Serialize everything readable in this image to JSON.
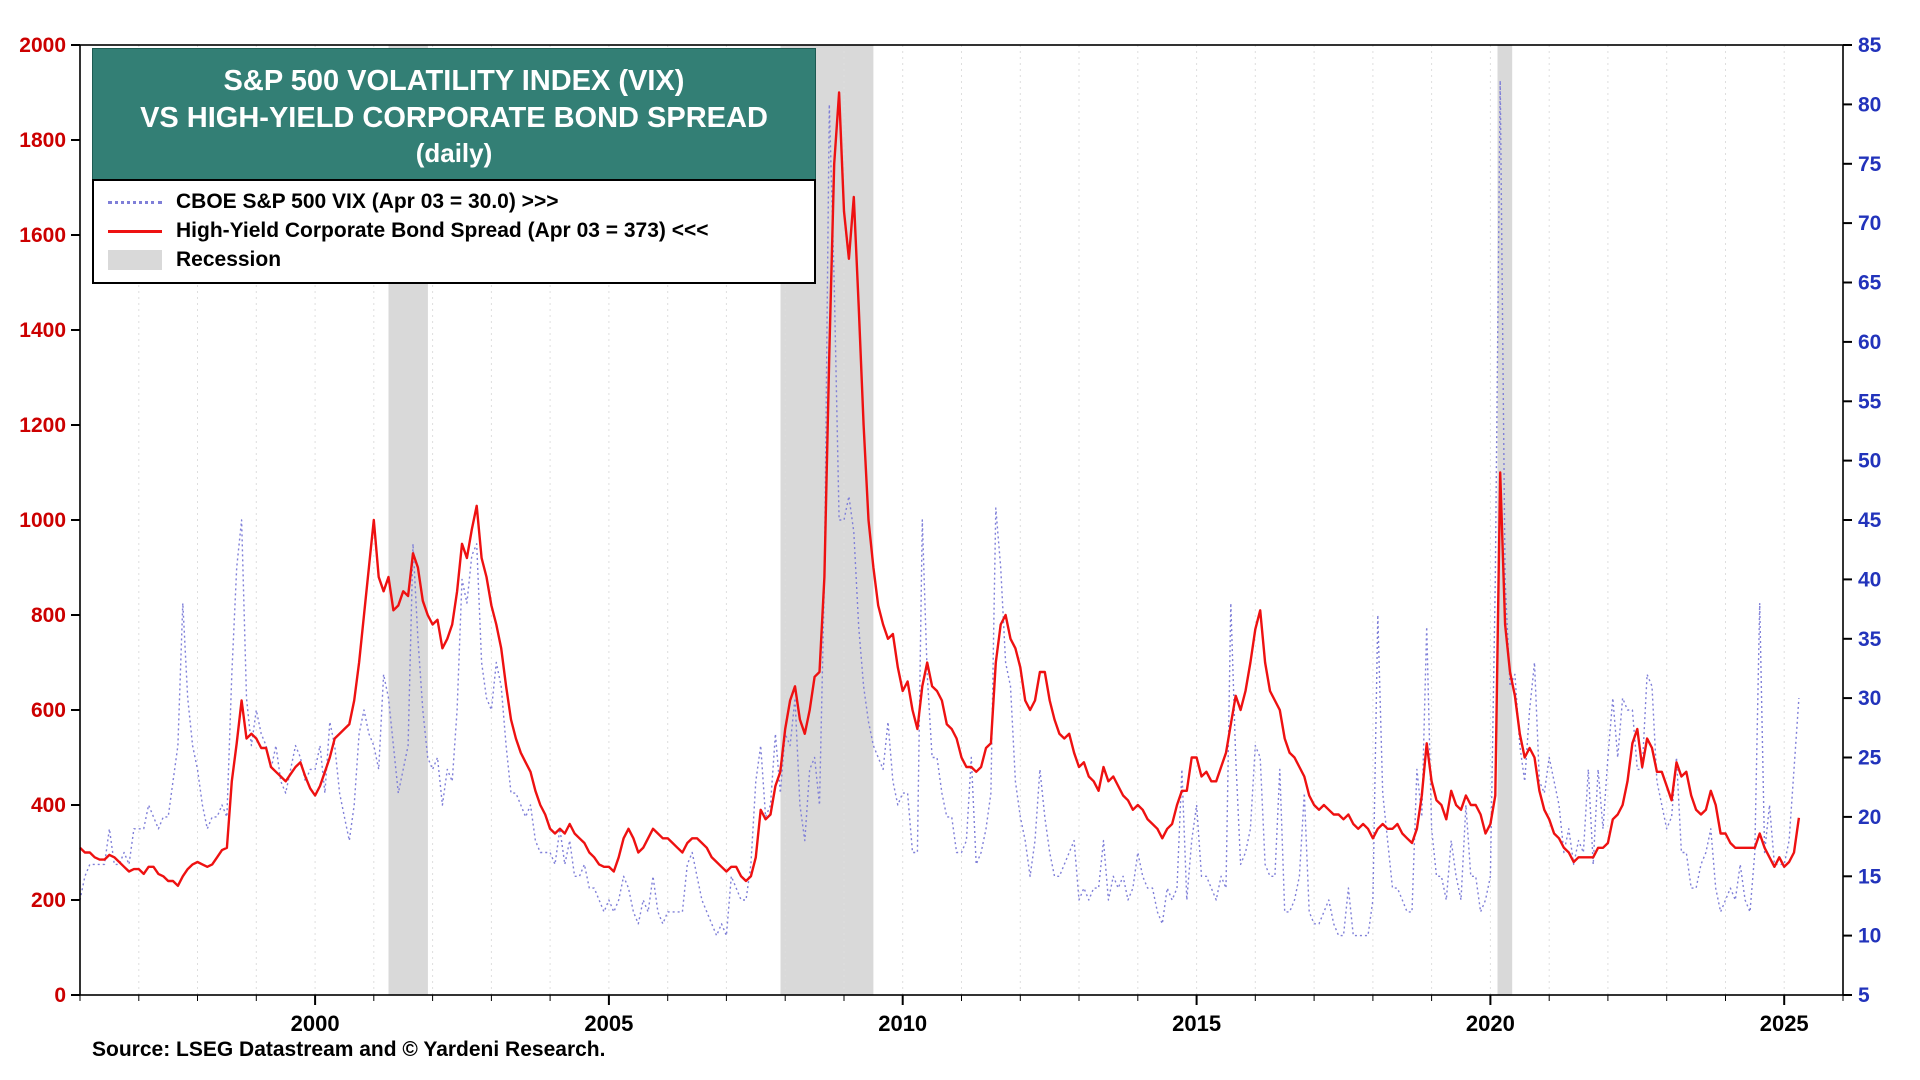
{
  "chart": {
    "title_lines": [
      "S&P 500 VOLATILITY INDEX (VIX)",
      "VS HIGH-YIELD CORPORATE BOND SPREAD",
      "(daily)"
    ],
    "legend": {
      "vix_label": "CBOE S&P 500 VIX (Apr 03 = 30.0) >>>",
      "spread_label": "High-Yield Corporate Bond Spread (Apr 03 = 373) <<<",
      "recession_label": "Recession"
    },
    "source": "Source: LSEG Datastream and © Yardeni Research.",
    "colors": {
      "title_bg": "#337f75",
      "vix": "#7f7fd8",
      "spread": "#ee1111",
      "recession": "#d9d9d9",
      "left_axis_labels": "#cc0000",
      "right_axis_labels": "#2233bb"
    }
  },
  "chart_data": {
    "type": "line",
    "title": "S&P 500 VOLATILITY INDEX (VIX) VS HIGH-YIELD CORPORATE BOND SPREAD (daily)",
    "x_domain": [
      1996,
      2026
    ],
    "x_ticks": [
      2000,
      2005,
      2010,
      2015,
      2020,
      2025
    ],
    "left_axis": {
      "range": [
        0,
        2000
      ],
      "ticks": [
        0,
        200,
        400,
        600,
        800,
        1000,
        1200,
        1400,
        1600,
        1800,
        2000
      ],
      "label_color": "#cc0000",
      "series": "High-Yield Corporate Bond Spread (basis points)"
    },
    "right_axis": {
      "range": [
        5,
        85
      ],
      "ticks": [
        5,
        10,
        15,
        20,
        25,
        30,
        35,
        40,
        45,
        50,
        55,
        60,
        65,
        70,
        75,
        80,
        85
      ],
      "label_color": "#2233bb",
      "series": "CBOE S&P 500 VIX"
    },
    "grid": "vertical-yearly-dashed",
    "legend_position": "top-left",
    "recessions": [
      [
        2001.25,
        2001.92
      ],
      [
        2007.92,
        2009.5
      ],
      [
        2020.12,
        2020.37
      ]
    ],
    "recession_color": "#d9d9d9",
    "series": [
      {
        "id": "vix",
        "name": "CBOE S&P 500 VIX",
        "latest_label": "Apr 03 = 30.0",
        "axis": "right",
        "color": "#7f7fd8",
        "dash": "2 3",
        "width": 1.4,
        "start_year": 1996,
        "points_per_year": 12,
        "values": [
          13,
          15,
          16,
          16,
          16,
          16,
          19,
          16,
          16,
          17,
          16,
          19,
          19,
          19,
          21,
          20,
          19,
          20,
          20,
          23,
          26,
          38,
          30,
          26,
          24,
          21,
          19,
          20,
          20,
          21,
          20,
          32,
          41,
          45,
          30,
          26,
          29,
          27,
          26,
          24,
          26,
          23,
          22,
          24,
          26,
          25,
          23,
          24,
          24,
          26,
          22,
          28,
          26,
          22,
          20,
          18,
          21,
          27,
          29,
          27,
          26,
          24,
          32,
          30,
          26,
          22,
          24,
          26,
          43,
          35,
          29,
          25,
          24,
          25,
          21,
          24,
          23,
          29,
          40,
          38,
          42,
          43,
          33,
          30,
          29,
          33,
          31,
          26,
          22,
          22,
          21,
          20,
          21,
          18,
          17,
          17,
          17,
          16,
          19,
          16,
          18,
          15,
          15,
          16,
          14,
          14,
          13,
          12,
          13,
          12,
          13,
          15,
          14,
          12,
          11,
          13,
          12,
          15,
          12,
          11,
          12,
          12,
          12,
          12,
          16,
          17,
          15,
          13,
          12,
          11,
          10,
          11,
          10,
          15,
          14,
          13,
          13,
          16,
          23,
          26,
          20,
          21,
          27,
          22,
          27,
          26,
          30,
          21,
          18,
          24,
          25,
          21,
          40,
          80,
          65,
          45,
          45,
          47,
          44,
          36,
          31,
          28,
          26,
          25,
          24,
          28,
          23,
          21,
          22,
          22,
          17,
          17,
          45,
          32,
          25,
          25,
          22,
          20,
          20,
          17,
          17,
          18,
          25,
          16,
          17,
          19,
          22,
          46,
          41,
          33,
          31,
          23,
          20,
          18,
          15,
          18,
          24,
          20,
          17,
          15,
          15,
          16,
          17,
          18,
          13,
          14,
          13,
          14,
          14,
          18,
          13,
          15,
          14,
          15,
          13,
          14,
          17,
          15,
          14,
          14,
          12,
          11,
          14,
          13,
          14,
          24,
          13,
          18,
          21,
          15,
          15,
          14,
          13,
          15,
          14,
          38,
          25,
          16,
          17,
          19,
          26,
          25,
          16,
          15,
          15,
          24,
          12,
          12,
          13,
          15,
          22,
          12,
          11,
          11,
          12,
          13,
          11,
          10,
          10,
          14,
          10,
          10,
          10,
          10,
          13,
          37,
          22,
          18,
          14,
          14,
          13,
          12,
          12,
          24,
          20,
          36,
          19,
          15,
          15,
          13,
          18,
          15,
          13,
          21,
          15,
          15,
          12,
          13,
          15,
          40,
          82,
          40,
          31,
          32,
          26,
          23,
          29,
          33,
          23,
          22,
          25,
          23,
          21,
          17,
          19,
          16,
          18,
          17,
          24,
          16,
          24,
          19,
          25,
          30,
          25,
          30,
          29,
          29,
          24,
          24,
          32,
          31,
          23,
          21,
          19,
          20,
          25,
          17,
          17,
          14,
          14,
          16,
          17,
          19,
          14,
          12,
          13,
          14,
          13,
          16,
          13,
          12,
          17,
          38,
          17,
          21,
          16,
          16,
          16,
          18,
          24,
          30
        ]
      },
      {
        "id": "spread",
        "name": "High-Yield Corporate Bond Spread",
        "latest_label": "Apr 03 = 373",
        "axis": "left",
        "color": "#ee1111",
        "dash": "",
        "width": 2.4,
        "start_year": 1996,
        "points_per_year": 12,
        "values": [
          310,
          300,
          300,
          290,
          285,
          285,
          295,
          290,
          280,
          270,
          260,
          265,
          265,
          255,
          270,
          270,
          255,
          250,
          240,
          240,
          230,
          250,
          265,
          275,
          280,
          275,
          270,
          275,
          290,
          305,
          310,
          450,
          530,
          620,
          540,
          550,
          540,
          520,
          520,
          480,
          470,
          460,
          450,
          465,
          480,
          490,
          460,
          435,
          420,
          440,
          470,
          500,
          540,
          550,
          560,
          570,
          620,
          700,
          800,
          900,
          1000,
          880,
          850,
          880,
          810,
          820,
          850,
          840,
          930,
          900,
          830,
          800,
          780,
          790,
          730,
          750,
          780,
          850,
          950,
          920,
          980,
          1030,
          920,
          880,
          820,
          780,
          730,
          650,
          580,
          540,
          510,
          490,
          470,
          430,
          400,
          380,
          350,
          340,
          350,
          340,
          360,
          340,
          330,
          320,
          300,
          290,
          275,
          270,
          270,
          260,
          290,
          330,
          350,
          330,
          300,
          310,
          330,
          350,
          340,
          330,
          330,
          320,
          310,
          300,
          320,
          330,
          330,
          320,
          310,
          290,
          280,
          270,
          260,
          270,
          270,
          250,
          240,
          250,
          290,
          390,
          370,
          380,
          440,
          470,
          560,
          620,
          650,
          580,
          550,
          600,
          670,
          680,
          880,
          1350,
          1750,
          1900,
          1650,
          1550,
          1680,
          1450,
          1200,
          1000,
          900,
          820,
          780,
          750,
          760,
          690,
          640,
          660,
          600,
          560,
          650,
          700,
          650,
          640,
          620,
          570,
          560,
          540,
          500,
          480,
          480,
          470,
          480,
          520,
          530,
          700,
          780,
          800,
          750,
          730,
          690,
          620,
          600,
          620,
          680,
          680,
          620,
          580,
          550,
          540,
          550,
          510,
          480,
          490,
          460,
          450,
          430,
          480,
          450,
          460,
          440,
          420,
          410,
          390,
          400,
          390,
          370,
          360,
          350,
          330,
          350,
          360,
          400,
          430,
          430,
          500,
          500,
          460,
          470,
          450,
          450,
          480,
          510,
          570,
          630,
          600,
          640,
          700,
          770,
          810,
          700,
          640,
          620,
          600,
          540,
          510,
          500,
          480,
          460,
          420,
          400,
          390,
          400,
          390,
          380,
          380,
          370,
          380,
          360,
          350,
          360,
          350,
          330,
          350,
          360,
          350,
          350,
          360,
          340,
          330,
          320,
          350,
          420,
          530,
          450,
          410,
          400,
          370,
          430,
          400,
          390,
          420,
          400,
          400,
          380,
          340,
          360,
          420,
          1100,
          780,
          680,
          630,
          550,
          500,
          520,
          500,
          430,
          390,
          370,
          340,
          330,
          310,
          300,
          280,
          290,
          290,
          290,
          290,
          310,
          310,
          320,
          370,
          380,
          400,
          450,
          530,
          560,
          480,
          540,
          520,
          470,
          470,
          440,
          410,
          490,
          460,
          470,
          420,
          390,
          380,
          390,
          430,
          400,
          340,
          340,
          320,
          310,
          310,
          310,
          310,
          310,
          340,
          310,
          290,
          270,
          290,
          270,
          280,
          300,
          373
        ]
      }
    ]
  }
}
